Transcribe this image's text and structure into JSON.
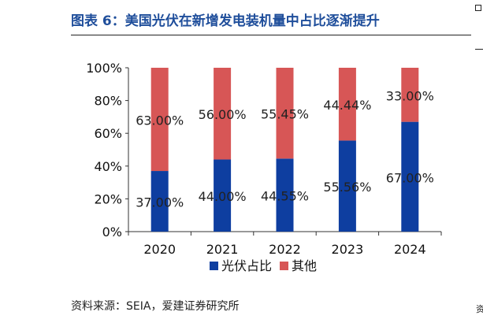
{
  "title": "图表 6：美国光伏在新增发电装机量中占比逐渐提升",
  "source": "资料来源：SEIA，爱建证券研究所",
  "colors": {
    "title": "#1f4e9b",
    "solar": "#0e3ea0",
    "other": "#d75656"
  },
  "chart_data": {
    "type": "bar",
    "stacked": true,
    "categories": [
      "2020",
      "2021",
      "2022",
      "2023",
      "2024"
    ],
    "series": [
      {
        "name": "光伏占比",
        "values": [
          37.0,
          44.0,
          44.55,
          55.56,
          67.0
        ],
        "labels": [
          "37.00%",
          "44.00%",
          "44.55%",
          "55.56%",
          "67.00%"
        ]
      },
      {
        "name": "其他",
        "values": [
          63.0,
          56.0,
          55.45,
          44.44,
          33.0
        ],
        "labels": [
          "63.00%",
          "56.00%",
          "55.45%",
          "44.44%",
          "33.00%"
        ]
      }
    ],
    "ylim": [
      0,
      100
    ],
    "yticks": [
      "0%",
      "20%",
      "40%",
      "60%",
      "80%",
      "100%"
    ],
    "legend": "bottom",
    "grid": false
  }
}
